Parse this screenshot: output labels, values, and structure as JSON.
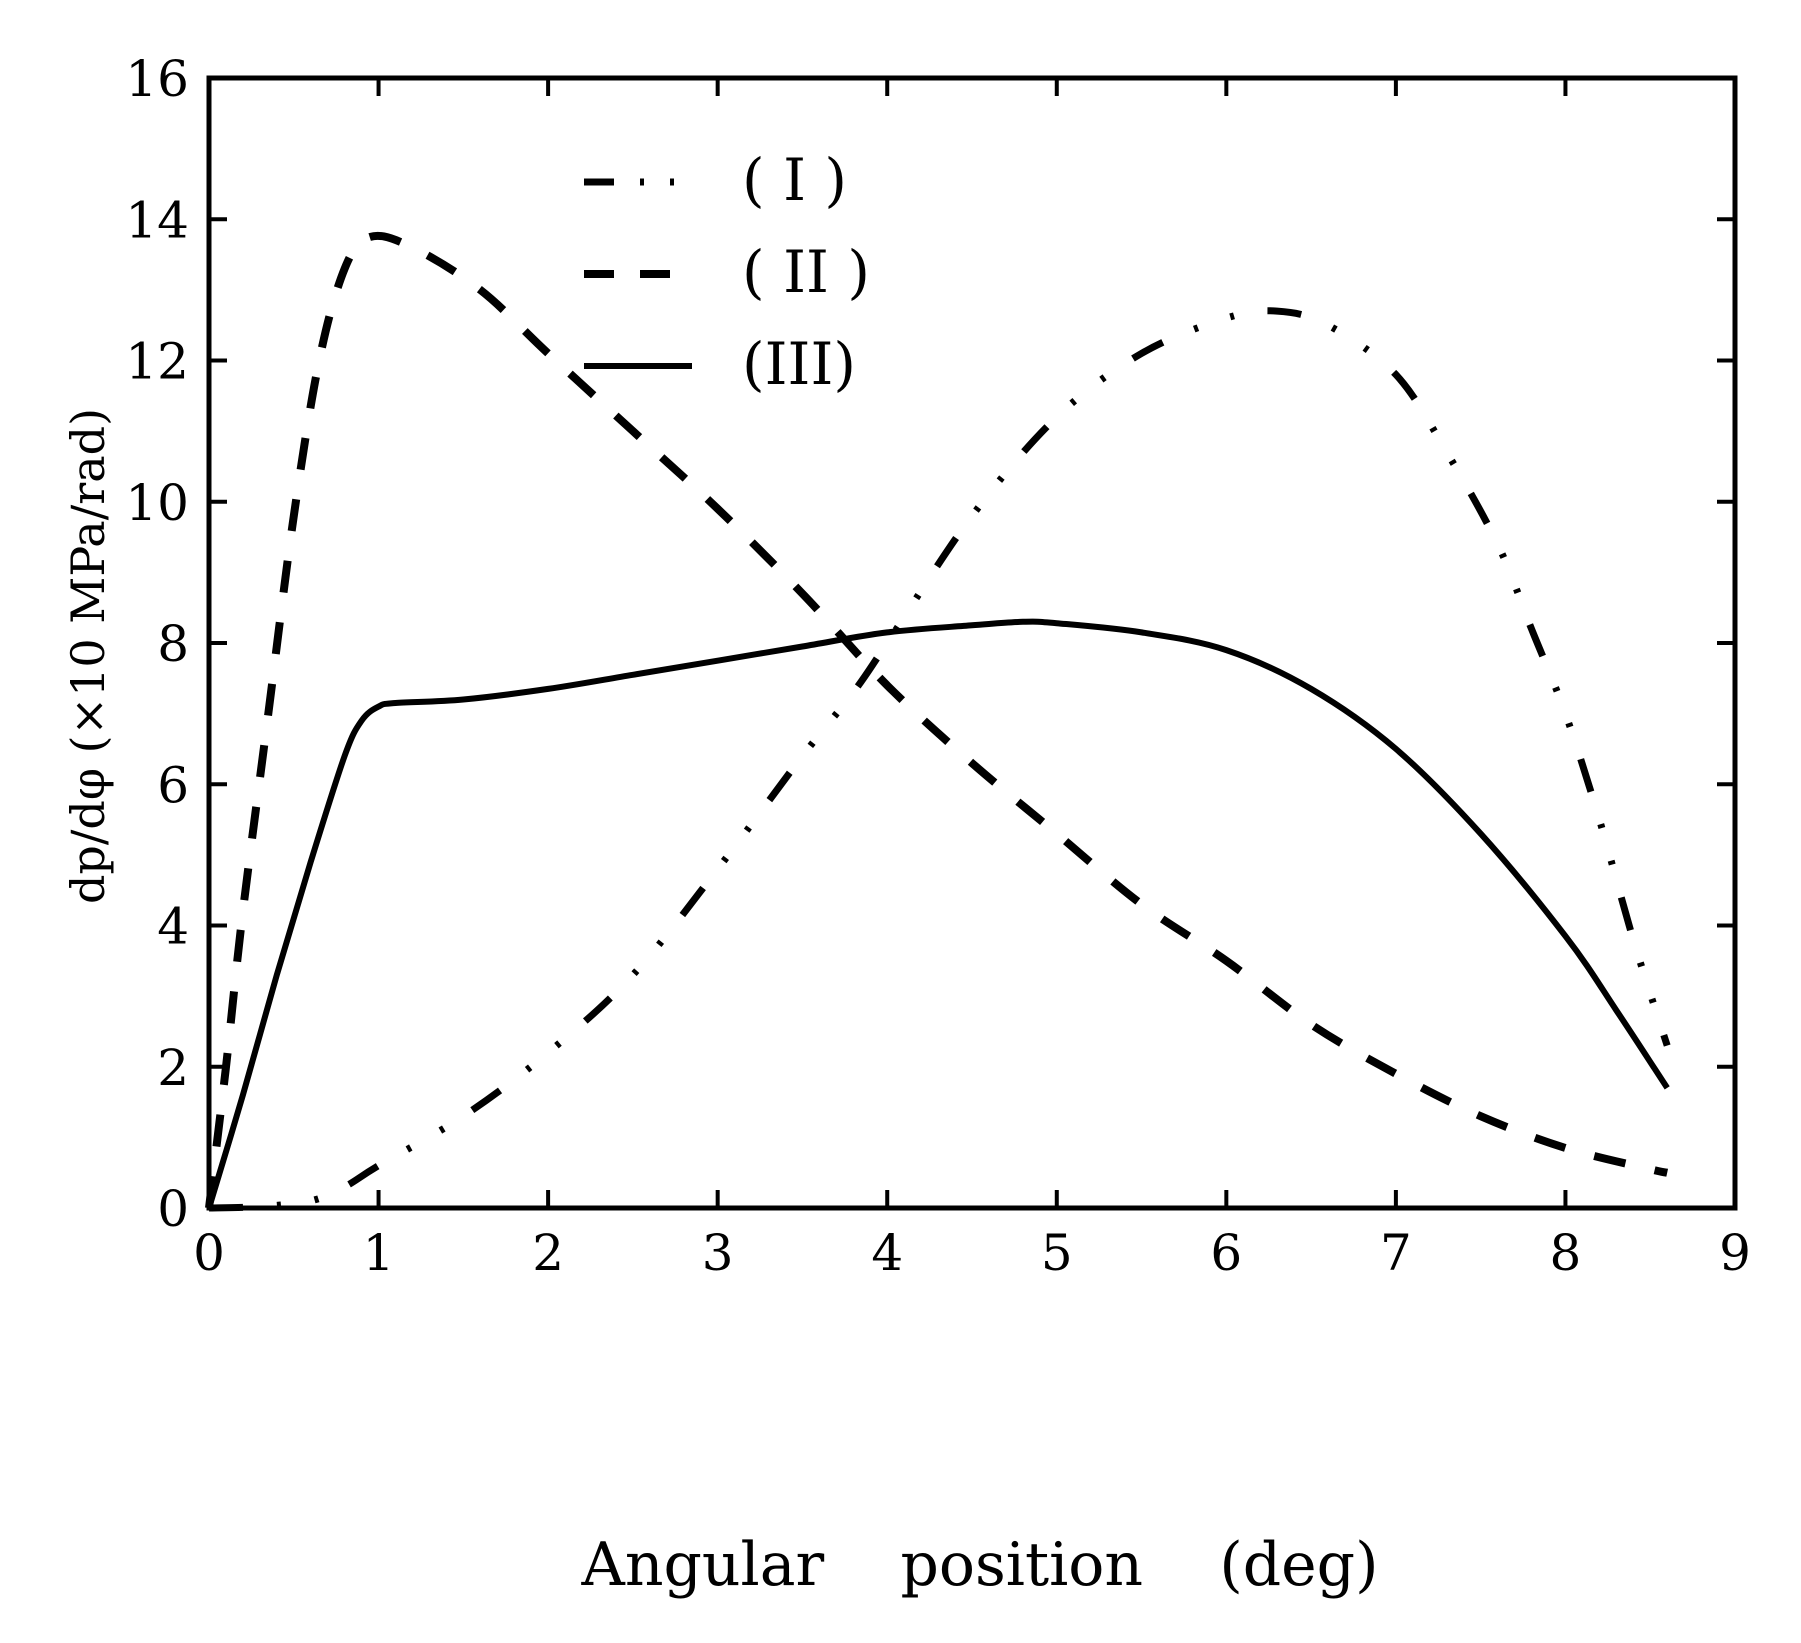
{
  "chart_data": {
    "type": "line",
    "title": "",
    "xlabel": "Angular    position    (deg)",
    "ylabel": "dp/dφ   (×10 MPa/rad)",
    "xlim": [
      0,
      9
    ],
    "ylim": [
      0,
      16
    ],
    "xticks": [
      "0",
      "1",
      "2",
      "3",
      "4",
      "5",
      "6",
      "7",
      "8",
      "9"
    ],
    "yticks": [
      "0",
      "2",
      "4",
      "6",
      "8",
      "10",
      "12",
      "14",
      "16"
    ],
    "grid": false,
    "legend_position": "top-center",
    "series": [
      {
        "name": "( I )",
        "style": "dash-dot-dot",
        "x": [
          0,
          0.3,
          0.6,
          0.8,
          1.0,
          1.5,
          2.0,
          2.5,
          3.0,
          3.5,
          3.8,
          4.0,
          4.5,
          5.0,
          5.5,
          6.0,
          6.3,
          6.6,
          7.0,
          7.3,
          7.6,
          7.8,
          8.0,
          8.2,
          8.4,
          8.6
        ],
        "y": [
          0,
          0.02,
          0.1,
          0.3,
          0.6,
          1.3,
          2.2,
          3.3,
          4.8,
          6.4,
          7.3,
          8.0,
          9.8,
          11.2,
          12.1,
          12.6,
          12.7,
          12.5,
          11.8,
          10.7,
          9.4,
          8.2,
          7.0,
          5.5,
          3.8,
          2.3
        ]
      },
      {
        "name": "( II )",
        "style": "dashed",
        "x": [
          0,
          0.1,
          0.2,
          0.35,
          0.5,
          0.65,
          0.8,
          0.95,
          1.2,
          1.6,
          2.0,
          2.5,
          3.0,
          3.5,
          4.0,
          4.5,
          5.0,
          5.5,
          6.0,
          6.5,
          7.0,
          7.5,
          8.0,
          8.5,
          8.6
        ],
        "y": [
          0,
          2.0,
          4.2,
          7.0,
          9.8,
          12.0,
          13.3,
          13.75,
          13.6,
          13.0,
          12.1,
          11.0,
          9.9,
          8.7,
          7.4,
          6.3,
          5.3,
          4.3,
          3.5,
          2.6,
          1.9,
          1.3,
          0.85,
          0.55,
          0.5
        ]
      },
      {
        "name": "(III)",
        "style": "solid",
        "x": [
          0,
          0.2,
          0.4,
          0.6,
          0.8,
          0.9,
          1.0,
          1.1,
          1.5,
          2.0,
          2.5,
          3.0,
          3.5,
          4.0,
          4.5,
          4.8,
          5.0,
          5.5,
          6.0,
          6.5,
          7.0,
          7.5,
          8.0,
          8.3,
          8.6
        ],
        "y": [
          0,
          1.6,
          3.3,
          4.9,
          6.4,
          6.9,
          7.1,
          7.15,
          7.2,
          7.35,
          7.55,
          7.75,
          7.95,
          8.15,
          8.25,
          8.3,
          8.28,
          8.15,
          7.9,
          7.35,
          6.5,
          5.3,
          3.85,
          2.8,
          1.7
        ]
      }
    ]
  }
}
